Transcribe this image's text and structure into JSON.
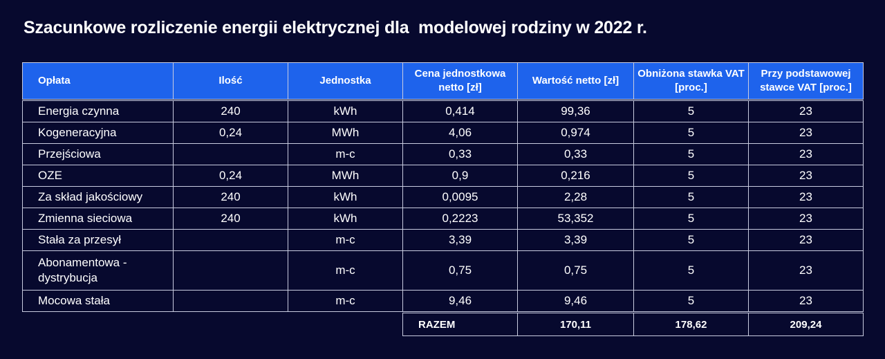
{
  "title": "Szacunkowe rozliczenie energii elektrycznej dla  modelowej rodziny w 2022 r.",
  "colors": {
    "background": "#07092e",
    "header": "#1e63ec",
    "border": "#c9cce0",
    "text": "#ffffff"
  },
  "headers": [
    "Opłata",
    "Ilość",
    "Jednostka",
    "Cena jednostkowa netto [zł]",
    "Wartość netto [zł]",
    "Obniżona stawka VAT [proc.]",
    "Przy podstawowej stawce VAT [proc.]"
  ],
  "rows": [
    [
      "Energia czynna",
      "240",
      "kWh",
      "0,414",
      "99,36",
      "5",
      "23"
    ],
    [
      "Kogeneracyjna",
      "0,24",
      "MWh",
      "4,06",
      "0,974",
      "5",
      "23"
    ],
    [
      "Przejściowa",
      "",
      "m-c",
      "0,33",
      "0,33",
      "5",
      "23"
    ],
    [
      "OZE",
      "0,24",
      "MWh",
      "0,9",
      "0,216",
      "5",
      "23"
    ],
    [
      "Za skład jakościowy",
      "240",
      "kWh",
      "0,0095",
      "2,28",
      "5",
      "23"
    ],
    [
      "Zmienna sieciowa",
      "240",
      "kWh",
      "0,2223",
      "53,352",
      "5",
      "23"
    ],
    [
      "Stała za przesył",
      "",
      "m-c",
      "3,39",
      "3,39",
      "5",
      "23"
    ],
    [
      "Abonamentowa -dystrybucja",
      "",
      "m-c",
      "0,75",
      "0,75",
      "5",
      "23"
    ],
    [
      "Mocowa stała",
      "",
      "m-c",
      "9,46",
      "9,46",
      "5",
      "23"
    ]
  ],
  "total": {
    "label": "RAZEM",
    "netto": "170,11",
    "reduced_vat": "178,62",
    "basic_vat": "209,24"
  }
}
